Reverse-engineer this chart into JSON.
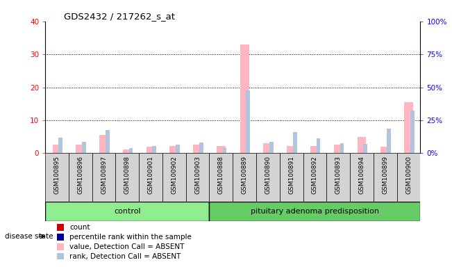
{
  "title": "GDS2432 / 217262_s_at",
  "samples": [
    "GSM100895",
    "GSM100896",
    "GSM100897",
    "GSM100898",
    "GSM100901",
    "GSM100902",
    "GSM100903",
    "GSM100888",
    "GSM100889",
    "GSM100890",
    "GSM100891",
    "GSM100892",
    "GSM100893",
    "GSM100894",
    "GSM100899",
    "GSM100900"
  ],
  "value_absent": [
    2.5,
    2.5,
    5.5,
    1.2,
    2.0,
    2.2,
    2.5,
    2.2,
    33.0,
    3.0,
    2.2,
    2.2,
    2.5,
    5.0,
    2.0,
    15.5
  ],
  "rank_absent": [
    4.8,
    3.5,
    7.0,
    1.5,
    2.2,
    2.5,
    3.2,
    1.5,
    19.0,
    3.5,
    6.3,
    4.5,
    3.0,
    2.8,
    7.5,
    13.0
  ],
  "ylim_left": [
    0,
    40
  ],
  "ylim_right": [
    0,
    100
  ],
  "yticks_left": [
    0,
    10,
    20,
    30,
    40
  ],
  "yticks_right": [
    0,
    25,
    50,
    75,
    100
  ],
  "ytick_labels_left": [
    "0",
    "10",
    "20",
    "30",
    "40"
  ],
  "ytick_labels_right": [
    "0%",
    "25%",
    "50%",
    "75%",
    "100%"
  ],
  "color_control": "#90EE90",
  "color_pituitary": "#66CC66",
  "color_sample_bg_even": "#D3D3D3",
  "color_sample_bg_odd": "#C0C0C0",
  "color_value_absent": "#FFB6C1",
  "color_rank_absent": "#B0C4DE",
  "color_count": "#CC0000",
  "color_percentile": "#000099",
  "legend_items": [
    "count",
    "percentile rank within the sample",
    "value, Detection Call = ABSENT",
    "rank, Detection Call = ABSENT"
  ],
  "legend_colors": [
    "#CC0000",
    "#000099",
    "#FFB6C1",
    "#B0C4DE"
  ],
  "disease_state_label": "disease state",
  "group_label_control": "control",
  "group_label_pituitary": "pituitary adenoma predisposition",
  "n_control": 7,
  "n_pituitary": 9
}
